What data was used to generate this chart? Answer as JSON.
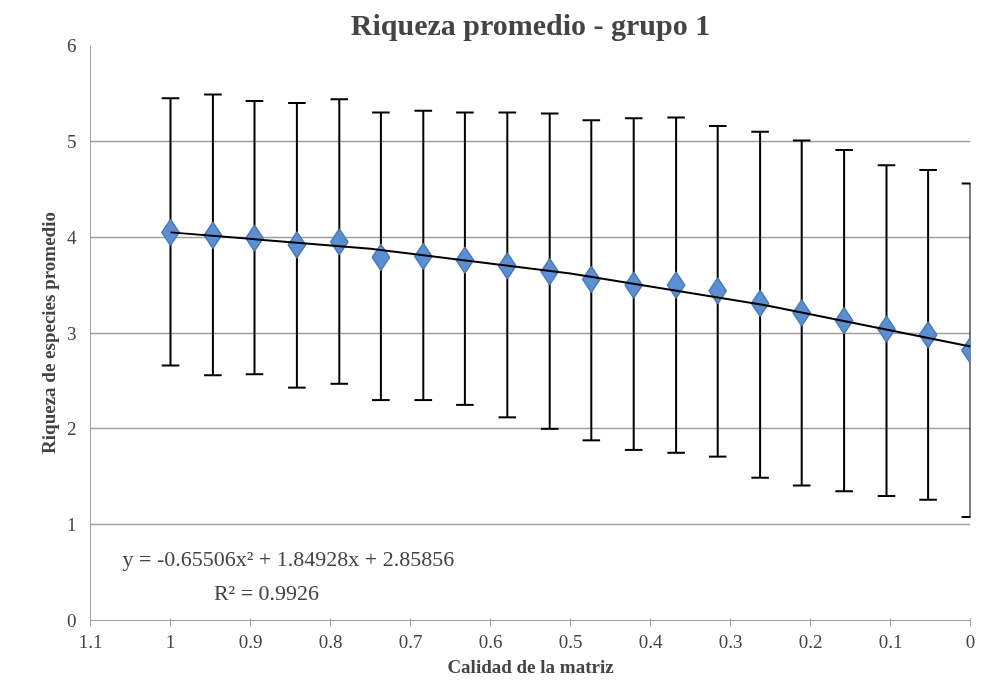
{
  "chart_data": {
    "type": "scatter",
    "title": "Riqueza promedio - grupo 1",
    "xlabel": "Calidad de la matriz",
    "ylabel": "Riqueza de especies promedio",
    "xlim": [
      1.1,
      0
    ],
    "xticks": [
      1.1,
      1,
      0.9,
      0.8,
      0.7,
      0.6,
      0.5,
      0.4,
      0.3,
      0.2,
      0.1,
      0
    ],
    "ylim": [
      0,
      6
    ],
    "yticks": [
      0,
      1,
      2,
      3,
      4,
      5,
      6
    ],
    "grid": "y",
    "marker": "diamond",
    "annotations": [
      "y = -0.65506x² + 1.84928x + 2.85856",
      "R² = 0.9926"
    ],
    "series": [
      {
        "color": "#5b8fd4",
        "x": [
          1,
          0.947,
          0.895,
          0.842,
          0.789,
          0.737,
          0.684,
          0.632,
          0.579,
          0.526,
          0.474,
          0.421,
          0.368,
          0.316,
          0.263,
          0.211,
          0.158,
          0.105,
          0.053,
          0
        ],
        "values": [
          4.05,
          4.02,
          3.99,
          3.92,
          3.95,
          3.79,
          3.8,
          3.76,
          3.7,
          3.64,
          3.56,
          3.5,
          3.5,
          3.44,
          3.31,
          3.21,
          3.13,
          3.04,
          2.98,
          2.82
        ],
        "errors": [
          [
            2.66,
            5.45
          ],
          [
            2.56,
            5.49
          ],
          [
            2.57,
            5.42
          ],
          [
            2.43,
            5.4
          ],
          [
            2.47,
            5.44
          ],
          [
            2.3,
            5.3
          ],
          [
            2.3,
            5.32
          ],
          [
            2.25,
            5.3
          ],
          [
            2.12,
            5.3
          ],
          [
            2.0,
            5.29
          ],
          [
            1.88,
            5.22
          ],
          [
            1.78,
            5.24
          ],
          [
            1.75,
            5.25
          ],
          [
            1.71,
            5.16
          ],
          [
            1.49,
            5.1
          ],
          [
            1.41,
            5.01
          ],
          [
            1.35,
            4.91
          ],
          [
            1.3,
            4.75
          ],
          [
            1.26,
            4.7
          ],
          [
            1.08,
            4.56
          ]
        ]
      },
      {
        "type": "line",
        "marker": "none",
        "color": "#000000",
        "x": [
          1,
          0.75,
          0.5,
          0.25,
          0
        ],
        "values": [
          4.05,
          3.88,
          3.62,
          3.28,
          2.86
        ]
      }
    ]
  }
}
